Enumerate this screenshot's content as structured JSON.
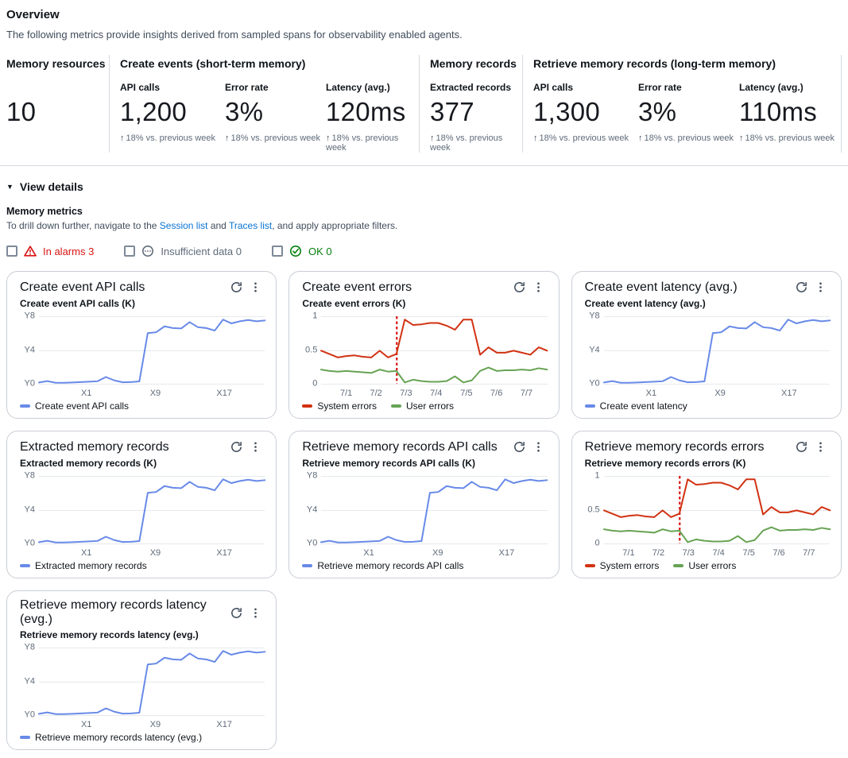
{
  "page": {
    "title": "Overview",
    "description": "The following metrics provide insights derived from sampled spans for observability enabled agents."
  },
  "summary": {
    "trend_arrow": "↑",
    "groups": [
      {
        "heading": "Memory resources",
        "metrics": [
          {
            "label": "",
            "value": "10",
            "trend": ""
          }
        ]
      },
      {
        "heading": "Create events (short-term memory)",
        "metrics": [
          {
            "label": "API calls",
            "value": "1,200",
            "trend": "18% vs. previous week"
          },
          {
            "label": "Error rate",
            "value": "3%",
            "trend": "18% vs. previous week"
          },
          {
            "label": "Latency (avg.)",
            "value": "120ms",
            "trend": "18% vs. previous week"
          }
        ]
      },
      {
        "heading": "Memory records",
        "metrics": [
          {
            "label": "Extracted records",
            "value": "377",
            "trend": "18% vs. previous week"
          }
        ]
      },
      {
        "heading": "Retrieve memory records (long-term memory)",
        "metrics": [
          {
            "label": "API calls",
            "value": "1,300",
            "trend": "18% vs. previous week"
          },
          {
            "label": "Error rate",
            "value": "3%",
            "trend": "18% vs. previous week"
          },
          {
            "label": "Latency (avg.)",
            "value": "110ms",
            "trend": "18% vs. previous week"
          }
        ]
      }
    ]
  },
  "details": {
    "toggle_label": "View details",
    "caret_icon": "▼",
    "section_title": "Memory metrics",
    "description": {
      "prefix": "To drill down further, navigate to the ",
      "link1": "Session list",
      "middle": " and ",
      "link2": "Traces list",
      "suffix": ", and apply appropriate filters."
    },
    "filters": [
      {
        "icon": "alarm-warning-icon",
        "label": "In alarms 3",
        "color": "#d91515",
        "checked": false
      },
      {
        "icon": "insufficient-data-icon",
        "label": "Insufficient data 0",
        "color": "#5f6b7a",
        "checked": false
      },
      {
        "icon": "ok-check-icon",
        "label": "OK 0",
        "color": "#037f0c",
        "checked": false
      }
    ]
  },
  "colors": {
    "chart_blue": "#688ae8",
    "chart_red": "#d13212",
    "chart_green": "#67a353",
    "threshold_red": "#d91515",
    "link_blue": "#0972d3",
    "grid": "#e6e9ec",
    "axis_text": "#5f6b7a"
  },
  "chart_data": [
    {
      "card_title": "Create event API calls",
      "type": "line",
      "title": "Create event API calls (K)",
      "ylim": [
        0,
        8
      ],
      "yticks": [
        {
          "label": "Y0",
          "v": 0
        },
        {
          "label": "Y4",
          "v": 4
        },
        {
          "label": "Y8",
          "v": 8
        }
      ],
      "xticks": [
        {
          "label": "X1",
          "pct": 21
        },
        {
          "label": "X9",
          "pct": 51.5
        },
        {
          "label": "X17",
          "pct": 82
        }
      ],
      "series": [
        {
          "name": "Create event API calls",
          "color": "#688ae8",
          "values": [
            0.15,
            0.32,
            0.12,
            0.12,
            0.15,
            0.2,
            0.25,
            0.3,
            0.8,
            0.4,
            0.18,
            0.2,
            0.28,
            6.0,
            6.1,
            6.8,
            6.6,
            6.55,
            7.3,
            6.7,
            6.6,
            6.3,
            7.6,
            7.15,
            7.4,
            7.55,
            7.4,
            7.5
          ]
        }
      ]
    },
    {
      "card_title": "Create event errors",
      "type": "line",
      "title": "Create event errors (K)",
      "ylim": [
        0,
        1
      ],
      "yticks": [
        {
          "label": "0",
          "v": 0
        },
        {
          "label": "0.5",
          "v": 0.5
        },
        {
          "label": "1",
          "v": 1
        }
      ],
      "xticks": [
        {
          "label": "7/1",
          "pct": 11
        },
        {
          "label": "7/2",
          "pct": 24.2
        },
        {
          "label": "7/3",
          "pct": 37.5
        },
        {
          "label": "7/4",
          "pct": 50.8
        },
        {
          "label": "7/5",
          "pct": 64.2
        },
        {
          "label": "7/6",
          "pct": 77.5
        },
        {
          "label": "7/7",
          "pct": 90.8
        }
      ],
      "annotation": {
        "x_pct": 33.5,
        "color": "#d91515"
      },
      "series": [
        {
          "name": "System errors",
          "color": "#d13212",
          "values": [
            0.49,
            0.44,
            0.39,
            0.41,
            0.42,
            0.4,
            0.39,
            0.49,
            0.39,
            0.44,
            0.95,
            0.87,
            0.88,
            0.9,
            0.9,
            0.86,
            0.8,
            0.95,
            0.95,
            0.43,
            0.54,
            0.46,
            0.46,
            0.49,
            0.46,
            0.43,
            0.54,
            0.49
          ]
        },
        {
          "name": "User errors",
          "color": "#67a353",
          "values": [
            0.21,
            0.19,
            0.18,
            0.19,
            0.18,
            0.17,
            0.16,
            0.21,
            0.18,
            0.19,
            0.02,
            0.06,
            0.04,
            0.03,
            0.03,
            0.04,
            0.11,
            0.02,
            0.05,
            0.19,
            0.24,
            0.19,
            0.2,
            0.2,
            0.21,
            0.2,
            0.23,
            0.21
          ]
        }
      ]
    },
    {
      "card_title": "Create event latency (avg.)",
      "type": "line",
      "title": "Create event latency (avg.)",
      "ylim": [
        0,
        8
      ],
      "yticks": [
        {
          "label": "Y0",
          "v": 0
        },
        {
          "label": "Y4",
          "v": 4
        },
        {
          "label": "Y8",
          "v": 8
        }
      ],
      "xticks": [
        {
          "label": "X1",
          "pct": 21
        },
        {
          "label": "X9",
          "pct": 51.5
        },
        {
          "label": "X17",
          "pct": 82
        }
      ],
      "series": [
        {
          "name": "Create event latency",
          "color": "#688ae8",
          "values": [
            0.15,
            0.32,
            0.12,
            0.12,
            0.15,
            0.2,
            0.25,
            0.3,
            0.8,
            0.4,
            0.18,
            0.2,
            0.28,
            6.0,
            6.1,
            6.8,
            6.6,
            6.55,
            7.3,
            6.7,
            6.6,
            6.3,
            7.6,
            7.15,
            7.4,
            7.55,
            7.4,
            7.5
          ]
        }
      ]
    },
    {
      "card_title": "Extracted memory records",
      "type": "line",
      "title": "Extracted memory records (K)",
      "ylim": [
        0,
        8
      ],
      "yticks": [
        {
          "label": "Y0",
          "v": 0
        },
        {
          "label": "Y4",
          "v": 4
        },
        {
          "label": "Y8",
          "v": 8
        }
      ],
      "xticks": [
        {
          "label": "X1",
          "pct": 21
        },
        {
          "label": "X9",
          "pct": 51.5
        },
        {
          "label": "X17",
          "pct": 82
        }
      ],
      "series": [
        {
          "name": "Extracted memory records",
          "color": "#688ae8",
          "values": [
            0.15,
            0.32,
            0.12,
            0.12,
            0.15,
            0.2,
            0.25,
            0.3,
            0.8,
            0.4,
            0.18,
            0.2,
            0.28,
            6.0,
            6.1,
            6.8,
            6.6,
            6.55,
            7.3,
            6.7,
            6.6,
            6.3,
            7.6,
            7.15,
            7.4,
            7.55,
            7.4,
            7.5
          ]
        }
      ]
    },
    {
      "card_title": "Retrieve memory records API calls",
      "type": "line",
      "title": "Retrieve memory records API calls (K)",
      "ylim": [
        0,
        8
      ],
      "yticks": [
        {
          "label": "Y0",
          "v": 0
        },
        {
          "label": "Y4",
          "v": 4
        },
        {
          "label": "Y8",
          "v": 8
        }
      ],
      "xticks": [
        {
          "label": "X1",
          "pct": 21
        },
        {
          "label": "X9",
          "pct": 51.5
        },
        {
          "label": "X17",
          "pct": 82
        }
      ],
      "series": [
        {
          "name": "Retrieve memory records API calls",
          "color": "#688ae8",
          "values": [
            0.15,
            0.32,
            0.12,
            0.12,
            0.15,
            0.2,
            0.25,
            0.3,
            0.8,
            0.4,
            0.18,
            0.2,
            0.28,
            6.0,
            6.1,
            6.8,
            6.6,
            6.55,
            7.3,
            6.7,
            6.6,
            6.3,
            7.6,
            7.15,
            7.4,
            7.55,
            7.4,
            7.5
          ]
        }
      ]
    },
    {
      "card_title": "Retrieve memory records errors",
      "type": "line",
      "title": "Retrieve memory records errors (K)",
      "ylim": [
        0,
        1
      ],
      "yticks": [
        {
          "label": "0",
          "v": 0
        },
        {
          "label": "0.5",
          "v": 0.5
        },
        {
          "label": "1",
          "v": 1
        }
      ],
      "xticks": [
        {
          "label": "7/1",
          "pct": 11
        },
        {
          "label": "7/2",
          "pct": 24.2
        },
        {
          "label": "7/3",
          "pct": 37.5
        },
        {
          "label": "7/4",
          "pct": 50.8
        },
        {
          "label": "7/5",
          "pct": 64.2
        },
        {
          "label": "7/6",
          "pct": 77.5
        },
        {
          "label": "7/7",
          "pct": 90.8
        }
      ],
      "annotation": {
        "x_pct": 33.5,
        "color": "#d91515"
      },
      "series": [
        {
          "name": "System errors",
          "color": "#d13212",
          "values": [
            0.49,
            0.44,
            0.39,
            0.41,
            0.42,
            0.4,
            0.39,
            0.49,
            0.39,
            0.44,
            0.95,
            0.87,
            0.88,
            0.9,
            0.9,
            0.86,
            0.8,
            0.95,
            0.95,
            0.43,
            0.54,
            0.46,
            0.46,
            0.49,
            0.46,
            0.43,
            0.54,
            0.49
          ]
        },
        {
          "name": "User errors",
          "color": "#67a353",
          "values": [
            0.21,
            0.19,
            0.18,
            0.19,
            0.18,
            0.17,
            0.16,
            0.21,
            0.18,
            0.19,
            0.02,
            0.06,
            0.04,
            0.03,
            0.03,
            0.04,
            0.11,
            0.02,
            0.05,
            0.19,
            0.24,
            0.19,
            0.2,
            0.2,
            0.21,
            0.2,
            0.23,
            0.21
          ]
        }
      ]
    },
    {
      "card_title": "Retrieve memory records latency (evg.)",
      "type": "line",
      "title": "Retrieve memory records latency (evg.)",
      "ylim": [
        0,
        8
      ],
      "yticks": [
        {
          "label": "Y0",
          "v": 0
        },
        {
          "label": "Y4",
          "v": 4
        },
        {
          "label": "Y8",
          "v": 8
        }
      ],
      "xticks": [
        {
          "label": "X1",
          "pct": 21
        },
        {
          "label": "X9",
          "pct": 51.5
        },
        {
          "label": "X17",
          "pct": 82
        }
      ],
      "series": [
        {
          "name": "Retrieve memory records latency (evg.)",
          "color": "#688ae8",
          "values": [
            0.15,
            0.32,
            0.12,
            0.12,
            0.15,
            0.2,
            0.25,
            0.3,
            0.8,
            0.4,
            0.18,
            0.2,
            0.28,
            6.0,
            6.1,
            6.8,
            6.6,
            6.55,
            7.3,
            6.7,
            6.6,
            6.3,
            7.6,
            7.15,
            7.4,
            7.55,
            7.4,
            7.5
          ]
        }
      ]
    }
  ]
}
